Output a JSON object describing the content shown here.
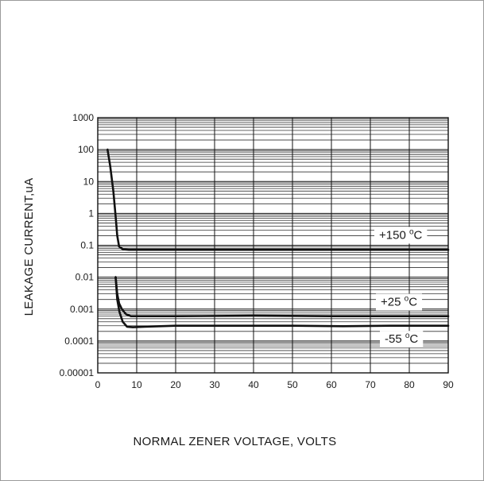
{
  "chart_data": {
    "type": "line",
    "title": "",
    "xlabel": "NORMAL ZENER VOLTAGE, VOLTS",
    "ylabel": "LEAKAGE CURRENT,uA",
    "xlim": [
      0,
      90
    ],
    "ylim": [
      1e-05,
      1000
    ],
    "yscale": "log",
    "grid": true,
    "x_ticks": [
      0,
      10,
      20,
      30,
      40,
      50,
      60,
      70,
      80,
      90
    ],
    "x_tick_labels": [
      "0",
      "10",
      "20",
      "30",
      "40",
      "50",
      "60",
      "70",
      "80",
      "90"
    ],
    "y_ticks": [
      1e-05,
      0.0001,
      0.001,
      0.01,
      0.1,
      1,
      10,
      100,
      1000
    ],
    "y_tick_labels": [
      "0.00001",
      "0.0001",
      "0.001",
      "0.01",
      "0.1",
      "1",
      "10",
      "100",
      "1000"
    ],
    "series": [
      {
        "name": "+150 °C",
        "label_text": "+150",
        "label_unit": "C",
        "x": [
          2.5,
          3.2,
          4.0,
          4.6,
          5.0,
          5.5,
          6.5,
          8,
          10,
          20,
          40,
          60,
          90
        ],
        "y": [
          100,
          30,
          5,
          0.8,
          0.2,
          0.09,
          0.075,
          0.072,
          0.072,
          0.072,
          0.072,
          0.072,
          0.072
        ]
      },
      {
        "name": "+25 °C",
        "label_text": "+25",
        "label_unit": "C",
        "x": [
          4.6,
          5.0,
          5.5,
          6.2,
          7.2,
          8.5,
          10,
          20,
          40,
          60,
          90
        ],
        "y": [
          0.01,
          0.003,
          0.0015,
          0.001,
          0.0007,
          0.0006,
          0.0006,
          0.0006,
          0.00062,
          0.0006,
          0.0006
        ]
      },
      {
        "name": "-55 °C",
        "label_text": "-55",
        "label_unit": "C",
        "x": [
          4.6,
          5.0,
          5.6,
          6.4,
          7.5,
          9,
          12,
          20,
          40,
          50,
          63,
          75,
          90
        ],
        "y": [
          0.01,
          0.002,
          0.0008,
          0.0004,
          0.00028,
          0.00027,
          0.00028,
          0.0003,
          0.0003,
          0.0003,
          0.00029,
          0.0003,
          0.0003
        ]
      }
    ]
  }
}
